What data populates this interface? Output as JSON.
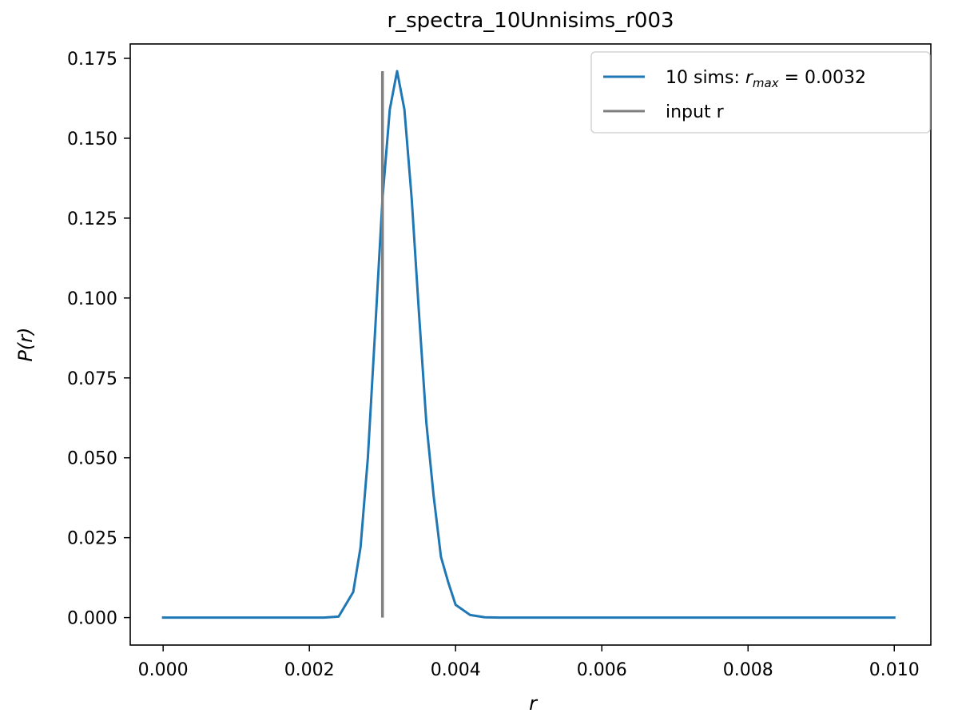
{
  "chart_data": {
    "type": "line",
    "title": "r_spectra_10Unnisims_r003",
    "xlabel": "r",
    "ylabel": "P(r)",
    "xlim": [
      -0.00045,
      0.0105
    ],
    "ylim": [
      -0.0086,
      0.1795
    ],
    "x_ticks": [
      0.0,
      0.002,
      0.004,
      0.006,
      0.008,
      0.01
    ],
    "x_tick_labels": [
      "0.000",
      "0.002",
      "0.004",
      "0.006",
      "0.008",
      "0.010"
    ],
    "y_ticks": [
      0.0,
      0.025,
      0.05,
      0.075,
      0.1,
      0.125,
      0.15,
      0.175
    ],
    "y_tick_labels": [
      "0.000",
      "0.025",
      "0.050",
      "0.075",
      "0.100",
      "0.125",
      "0.150",
      "0.175"
    ],
    "grid": false,
    "legend_position": "top-right",
    "series": [
      {
        "name": "10 sims: r_max = 0.0032",
        "legend_prefix": "10 sims: ",
        "legend_math_var": "r",
        "legend_math_sub": "max",
        "legend_math_value": " = 0.0032",
        "color": "#1f77b4",
        "x": [
          0.0,
          0.0002,
          0.0004,
          0.0006,
          0.0008,
          0.001,
          0.0012,
          0.0014,
          0.0016,
          0.0018,
          0.002,
          0.0022,
          0.0024,
          0.0026,
          0.0027,
          0.0028,
          0.0029,
          0.003,
          0.0031,
          0.0032,
          0.0033,
          0.0034,
          0.0035,
          0.0036,
          0.0037,
          0.0038,
          0.0039,
          0.004,
          0.0042,
          0.0044,
          0.0046,
          0.0048,
          0.005,
          0.006,
          0.007,
          0.008,
          0.009,
          0.01
        ],
        "y": [
          0.0,
          0.0,
          0.0,
          0.0,
          0.0,
          0.0,
          0.0,
          0.0,
          0.0,
          0.0,
          0.0,
          0.0,
          0.0003,
          0.008,
          0.022,
          0.05,
          0.09,
          0.131,
          0.159,
          0.171,
          0.159,
          0.131,
          0.095,
          0.061,
          0.038,
          0.019,
          0.011,
          0.004,
          0.0008,
          0.0001,
          0.0,
          0.0,
          0.0,
          0.0,
          0.0,
          0.0,
          0.0,
          0.0
        ]
      }
    ],
    "vertical_lines": [
      {
        "name": "input r",
        "x": 0.003,
        "y_range": [
          0.0,
          0.171
        ],
        "color": "#808080"
      }
    ]
  }
}
